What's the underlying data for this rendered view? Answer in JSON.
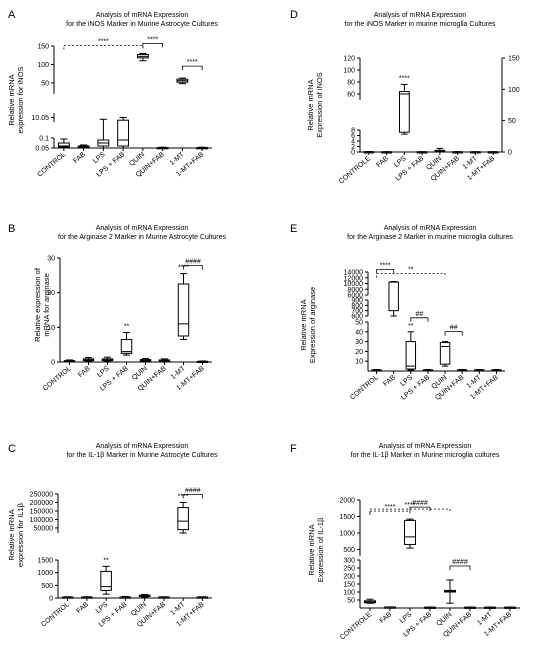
{
  "panels": [
    {
      "letter": "A",
      "title": [
        "Analysis of mRNA Expression",
        "for the iNOS Marker in Murine Astrocyte Cultures"
      ],
      "ylabel": [
        "Relative mRNA",
        "expression for iNOS"
      ]
    },
    {
      "letter": "D",
      "title": [
        "Analysis of mRNA Expression",
        "for the iNOS Marker in murine microglia Cultures"
      ],
      "ylabel": [
        "Relative mRNA",
        "Expression of  iNOS"
      ]
    },
    {
      "letter": "B",
      "title": [
        "Analysis of mRNA Expression",
        "for the Arginase 2 Marker  in Murine Astrocyte Cultures"
      ],
      "ylabel": [
        "Relative expression of",
        "mRNA for arginase"
      ]
    },
    {
      "letter": "E",
      "title": [
        "Analysis of mRNA Expression",
        "for the Arginase 2 Marker  in murine microglia cultures"
      ],
      "ylabel": [
        "Relative mRNA",
        "Expression of  arginase"
      ]
    },
    {
      "letter": "C",
      "title": [
        "Analysis of mRNA Expression",
        "for the IL-1β Marker  in Murine Astrocyte Cultures"
      ],
      "ylabel": [
        "Relative mRNA",
        "expression for IL1β"
      ]
    },
    {
      "letter": "F",
      "title": [
        "Analysis of mRNA Expression",
        "for the IL-1β Marker in Murine microglia cultures"
      ],
      "ylabel": [
        "Relative mRNA",
        "Expression of IL-1β"
      ]
    }
  ],
  "chart_data": [
    {
      "type": "box",
      "panel": "A",
      "categories": [
        "CONTROL",
        "FAB",
        "LPS",
        "LPS + FAB",
        "QUIN",
        "QUIN+FAB",
        "1-MT",
        "1-MT+FAB"
      ],
      "yaxis_segments": [
        {
          "range": [
            0.05,
            0.1
          ],
          "ticks": [
            "0.05",
            "0.1"
          ]
        },
        {
          "range": [
            10.0,
            10.1
          ],
          "ticks": [
            "10.05"
          ]
        },
        {
          "range": [
            20,
            150
          ],
          "ticks": [
            "50",
            "100",
            "150"
          ]
        }
      ],
      "boxes": [
        {
          "category": "CONTROL",
          "min": 0.05,
          "q1": 0.055,
          "median": 0.06,
          "q3": 0.075,
          "max": 0.095
        },
        {
          "category": "FAB",
          "min": 0.052,
          "q1": 0.054,
          "median": 0.056,
          "q3": 0.06,
          "max": 0.065
        },
        {
          "category": "LPS",
          "min": 0.05,
          "q1": 0.06,
          "median": 0.075,
          "q3": 0.09,
          "max": 10.03
        },
        {
          "category": "LPS + FAB",
          "min": 0.05,
          "q1": 0.06,
          "median": 0.09,
          "q3": 10.02,
          "max": 10.05
        },
        {
          "category": "QUIN",
          "min": 110,
          "q1": 118,
          "median": 122,
          "q3": 127,
          "max": 130
        },
        {
          "category": "QUIN+FAB",
          "min": 0.05,
          "q1": 0.05,
          "median": 0.05,
          "q3": 0.052,
          "max": 0.054
        },
        {
          "category": "1-MT",
          "min": 48,
          "q1": 52,
          "median": 56,
          "q3": 60,
          "max": 63
        },
        {
          "category": "1-MT+FAB",
          "min": 0.05,
          "q1": 0.05,
          "median": 0.05,
          "q3": 0.052,
          "max": 0.054
        }
      ],
      "annotations": [
        {
          "text": "****",
          "from": "CONTROL",
          "to": "QUIN"
        },
        {
          "text": "****",
          "from": "QUIN",
          "to": "QUIN+FAB"
        },
        {
          "text": "****",
          "from": "1-MT",
          "to": "1-MT+FAB"
        }
      ]
    },
    {
      "type": "box",
      "panel": "D",
      "categories": [
        "CONTROLE",
        "FAB",
        "LPS",
        "LPS + FAB",
        "QUIN",
        "QUIN+FAB",
        "1-MT",
        "1-MT+FAB"
      ],
      "yaxis_segments": [
        {
          "range": [
            0,
            8
          ],
          "ticks": [
            "0",
            "2",
            "4",
            "6",
            "8"
          ]
        },
        {
          "range": [
            50,
            120
          ],
          "ticks": [
            "60",
            "80",
            "100",
            "120"
          ]
        }
      ],
      "right_axis_ticks": [
        "0",
        "50",
        "100",
        "150"
      ],
      "boxes": [
        {
          "category": "CONTROLE",
          "min": 0,
          "q1": 0,
          "median": 0.05,
          "q3": 0.1,
          "max": 0.15
        },
        {
          "category": "FAB",
          "min": 0,
          "q1": 0,
          "median": 0.05,
          "q3": 0.08,
          "max": 0.1
        },
        {
          "category": "LPS",
          "min": 6.5,
          "q1": 7.2,
          "median": 60,
          "q3": 64,
          "max": 76
        },
        {
          "category": "LPS + FAB",
          "min": 0,
          "q1": 0,
          "median": 0.05,
          "q3": 0.08,
          "max": 0.1
        },
        {
          "category": "QUIN",
          "min": 0,
          "q1": 0.1,
          "median": 0.3,
          "q3": 0.6,
          "max": 1.3
        },
        {
          "category": "QUIN+FAB",
          "min": 0,
          "q1": 0,
          "median": 0.05,
          "q3": 0.08,
          "max": 0.1
        },
        {
          "category": "1-MT",
          "min": 0,
          "q1": 0,
          "median": 0.05,
          "q3": 0.08,
          "max": 0.1
        },
        {
          "category": "1-MT+FAB",
          "min": 0,
          "q1": 0,
          "median": 0.05,
          "q3": 0.08,
          "max": 0.1
        }
      ],
      "annotations": [
        {
          "text": "****",
          "category": "LPS"
        }
      ]
    },
    {
      "type": "box",
      "panel": "B",
      "categories": [
        "CONTROL",
        "FAB",
        "LPS",
        "LPS + FAB",
        "QUIN",
        "QUIN+FAB",
        "1-MT",
        "1-MT+FAB"
      ],
      "ylim": [
        0,
        30
      ],
      "yticks": [
        "0",
        "10",
        "20",
        "30"
      ],
      "boxes": [
        {
          "category": "CONTROL",
          "min": 0.1,
          "q1": 0.2,
          "median": 0.3,
          "q3": 0.4,
          "max": 0.6
        },
        {
          "category": "FAB",
          "min": 0.2,
          "q1": 0.4,
          "median": 0.6,
          "q3": 0.9,
          "max": 1.3
        },
        {
          "category": "LPS",
          "min": 0.2,
          "q1": 0.4,
          "median": 0.6,
          "q3": 0.9,
          "max": 1.4
        },
        {
          "category": "LPS + FAB",
          "min": 2.0,
          "q1": 2.5,
          "median": 3.0,
          "q3": 6.5,
          "max": 8.5
        },
        {
          "category": "QUIN",
          "min": 0.2,
          "q1": 0.3,
          "median": 0.5,
          "q3": 0.7,
          "max": 1.0
        },
        {
          "category": "QUIN+FAB",
          "min": 0.1,
          "q1": 0.2,
          "median": 0.4,
          "q3": 0.6,
          "max": 0.9
        },
        {
          "category": "1-MT",
          "min": 6.5,
          "q1": 7.5,
          "median": 11,
          "q3": 22.5,
          "max": 25.5
        },
        {
          "category": "1-MT+FAB",
          "min": 0.05,
          "q1": 0.1,
          "median": 0.15,
          "q3": 0.2,
          "max": 0.3
        }
      ],
      "annotations": [
        {
          "text": "**",
          "category": "LPS + FAB"
        },
        {
          "text": "****",
          "category": "1-MT"
        },
        {
          "text": "####",
          "from": "1-MT",
          "to": "1-MT+FAB"
        }
      ]
    },
    {
      "type": "box",
      "panel": "E",
      "categories": [
        "CONTROL",
        "FAB",
        "LPS",
        "LPS + FAB",
        "QUIN",
        "QUIN+FAB",
        "1-MT",
        "1-MT+FAB"
      ],
      "yaxis_segments": [
        {
          "range": [
            0,
            50
          ],
          "ticks": [
            "10",
            "20",
            "30",
            "40",
            "50"
          ]
        },
        {
          "range": [
            600,
            900
          ],
          "ticks": [
            "600",
            "700",
            "800",
            "900"
          ]
        },
        {
          "range": [
            6000,
            14000
          ],
          "ticks": [
            "6000",
            "8000",
            "10000",
            "12000",
            "14000"
          ]
        }
      ],
      "boxes": [
        {
          "category": "CONTROL",
          "min": 0.5,
          "q1": 0.8,
          "median": 1.0,
          "q3": 1.2,
          "max": 1.5
        },
        {
          "category": "FAB",
          "min": 600,
          "q1": 700,
          "median": 10500,
          "q3": 10500,
          "max": 10700
        },
        {
          "category": "LPS",
          "min": 1,
          "q1": 2,
          "median": 5,
          "q3": 30,
          "max": 40
        },
        {
          "category": "LPS + FAB",
          "min": 0.5,
          "q1": 0.8,
          "median": 1.0,
          "q3": 1.2,
          "max": 1.5
        },
        {
          "category": "QUIN",
          "min": 5,
          "q1": 7,
          "median": 25,
          "q3": 29,
          "max": 30
        },
        {
          "category": "QUIN+FAB",
          "min": 0.5,
          "q1": 0.8,
          "median": 1.0,
          "q3": 1.2,
          "max": 1.5
        },
        {
          "category": "1-MT",
          "min": 0.5,
          "q1": 0.8,
          "median": 1.0,
          "q3": 1.2,
          "max": 1.5
        },
        {
          "category": "1-MT+FAB",
          "min": 0.5,
          "q1": 0.8,
          "median": 1.0,
          "q3": 1.2,
          "max": 1.5
        }
      ],
      "annotations": [
        {
          "text": "**",
          "from": "CONTROL",
          "to": "QUIN"
        },
        {
          "text": "##",
          "from": "QUIN",
          "to": "QUIN+FAB"
        },
        {
          "text": "****",
          "from": "CONTROL",
          "to": "FAB"
        },
        {
          "text": "**",
          "category": "LPS"
        },
        {
          "text": "##",
          "from": "LPS",
          "to": "LPS + FAB"
        }
      ]
    },
    {
      "type": "box",
      "panel": "C",
      "categories": [
        "CONTROL",
        "FAB",
        "LPS",
        "LPS + FAB",
        "QUIN",
        "QUIN+FAB",
        "1-MT",
        "1-MT+FAB"
      ],
      "yaxis_segments": [
        {
          "range": [
            0,
            1500
          ],
          "ticks": [
            "0",
            "500",
            "1000",
            "1500"
          ]
        },
        {
          "range": [
            20000,
            250000
          ],
          "ticks": [
            "50000",
            "100000",
            "150000",
            "200000",
            "250000"
          ]
        }
      ],
      "boxes": [
        {
          "category": "CONTROL",
          "min": 10,
          "q1": 20,
          "median": 30,
          "q3": 40,
          "max": 50
        },
        {
          "category": "FAB",
          "min": 10,
          "q1": 20,
          "median": 30,
          "q3": 40,
          "max": 50
        },
        {
          "category": "LPS",
          "min": 150,
          "q1": 300,
          "median": 450,
          "q3": 1050,
          "max": 1250
        },
        {
          "category": "LPS + FAB",
          "min": 10,
          "q1": 20,
          "median": 30,
          "q3": 40,
          "max": 60
        },
        {
          "category": "QUIN",
          "min": 40,
          "q1": 60,
          "median": 80,
          "q3": 110,
          "max": 140
        },
        {
          "category": "QUIN+FAB",
          "min": 10,
          "q1": 20,
          "median": 30,
          "q3": 40,
          "max": 50
        },
        {
          "category": "1-MT",
          "min": 20000,
          "q1": 40000,
          "median": 90000,
          "q3": 170000,
          "max": 200000
        },
        {
          "category": "1-MT+FAB",
          "min": 10,
          "q1": 20,
          "median": 30,
          "q3": 40,
          "max": 50
        }
      ],
      "annotations": [
        {
          "text": "**",
          "category": "LPS"
        },
        {
          "text": "****",
          "category": "1-MT"
        },
        {
          "text": "####",
          "from": "1-MT",
          "to": "1-MT+FAB"
        }
      ]
    },
    {
      "type": "box",
      "panel": "F",
      "categories": [
        "CONTROLE",
        "FAB",
        "LPS",
        "LPS + FAB",
        "QUIN",
        "QUIN+FAB",
        "1-MT",
        "1-MT+FAB"
      ],
      "yaxis_segments": [
        {
          "range": [
            0,
            300
          ],
          "ticks": [
            "50",
            "100",
            "150",
            "200",
            "250",
            "300"
          ]
        },
        {
          "range": [
            300,
            2000
          ],
          "ticks": [
            "500",
            "1000",
            "1500",
            "2000"
          ]
        }
      ],
      "boxes": [
        {
          "category": "CONTROLE",
          "min": 30,
          "q1": 33,
          "median": 38,
          "q3": 45,
          "max": 55
        },
        {
          "category": "FAB",
          "min": 3,
          "q1": 4,
          "median": 5,
          "q3": 6,
          "max": 7
        },
        {
          "category": "LPS",
          "min": 540,
          "q1": 650,
          "median": 880,
          "q3": 1380,
          "max": 1420
        },
        {
          "category": "LPS + FAB",
          "min": 2,
          "q1": 3,
          "median": 4,
          "q3": 5,
          "max": 6
        },
        {
          "category": "QUIN",
          "min": 30,
          "q1": 100,
          "median": 105,
          "q3": 110,
          "max": 175
        },
        {
          "category": "QUIN+FAB",
          "min": 2,
          "q1": 3,
          "median": 4,
          "q3": 5,
          "max": 6
        },
        {
          "category": "1-MT",
          "min": 2,
          "q1": 3,
          "median": 4,
          "q3": 5,
          "max": 6
        },
        {
          "category": "1-MT+FAB",
          "min": 2,
          "q1": 3,
          "median": 4,
          "q3": 5,
          "max": 6
        }
      ],
      "annotations": [
        {
          "text": "****",
          "from": "CONTROLE",
          "to": "LPS"
        },
        {
          "text": "****",
          "from": "CONTROLE",
          "to": "QUIN"
        },
        {
          "text": "####",
          "from": "LPS",
          "to": "LPS + FAB"
        },
        {
          "text": "####",
          "from": "QUIN",
          "to": "QUIN+FAB"
        }
      ]
    }
  ]
}
